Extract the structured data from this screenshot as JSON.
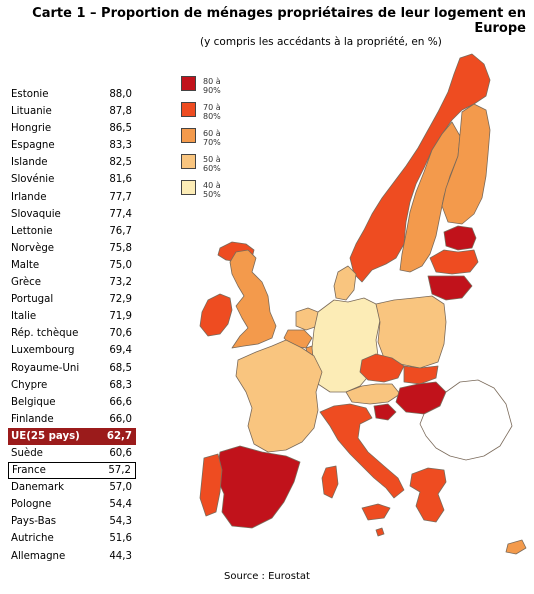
{
  "title": "Carte 1 – Proportion de ménages propriétaires de leur logement en Europe",
  "subtitle": "(y compris les accédants à la propriété, en %)",
  "source": "Source : Eurostat",
  "legend": [
    {
      "label": "80 à 90%",
      "color": "#c1121b"
    },
    {
      "label": "70 à 80%",
      "color": "#ee4c21"
    },
    {
      "label": "60 à 70%",
      "color": "#f39a4c"
    },
    {
      "label": "50 à 60%",
      "color": "#f9c57f"
    },
    {
      "label": "40 à 50%",
      "color": "#fcecb6"
    }
  ],
  "ranking": [
    {
      "country": "Estonie",
      "value": "88,0"
    },
    {
      "country": "Lituanie",
      "value": "87,8"
    },
    {
      "country": "Hongrie",
      "value": "86,5"
    },
    {
      "country": "Espagne",
      "value": "83,3"
    },
    {
      "country": "Islande",
      "value": "82,5"
    },
    {
      "country": "Slovénie",
      "value": "81,6"
    },
    {
      "country": "Irlande",
      "value": "77,7"
    },
    {
      "country": "Slovaquie",
      "value": "77,4"
    },
    {
      "country": "Lettonie",
      "value": "76,7"
    },
    {
      "country": "Norvège",
      "value": "75,8"
    },
    {
      "country": "Malte",
      "value": "75,0"
    },
    {
      "country": "Grèce",
      "value": "73,2"
    },
    {
      "country": "Portugal",
      "value": "72,9"
    },
    {
      "country": "Italie",
      "value": "71,9"
    },
    {
      "country": "Rép. tchèque",
      "value": "70,6"
    },
    {
      "country": "Luxembourg",
      "value": "69,4"
    },
    {
      "country": "Royaume-Uni",
      "value": "68,5"
    },
    {
      "country": "Chypre",
      "value": "68,3"
    },
    {
      "country": "Belgique",
      "value": "66,6"
    },
    {
      "country": "Finlande",
      "value": "66,0"
    },
    {
      "country": "UE(25 pays)",
      "value": "62,7",
      "highlight": "eu"
    },
    {
      "country": "Suède",
      "value": "60,6"
    },
    {
      "country": "France",
      "value": "57,2",
      "highlight": "france"
    },
    {
      "country": "Danemark",
      "value": "57,0"
    },
    {
      "country": "Pologne",
      "value": "54,4"
    },
    {
      "country": "Pays-Bas",
      "value": "54,3"
    },
    {
      "country": "Autriche",
      "value": "51,6"
    },
    {
      "country": "Allemagne",
      "value": "44,3"
    }
  ],
  "map_colors": {
    "c80_90": "#c1121b",
    "c70_80": "#ee4c21",
    "c60_70": "#f39a4c",
    "c50_60": "#f9c57f",
    "c40_50": "#fcecb6",
    "no_data": "#ffffff",
    "border": "#7a6a5a"
  }
}
